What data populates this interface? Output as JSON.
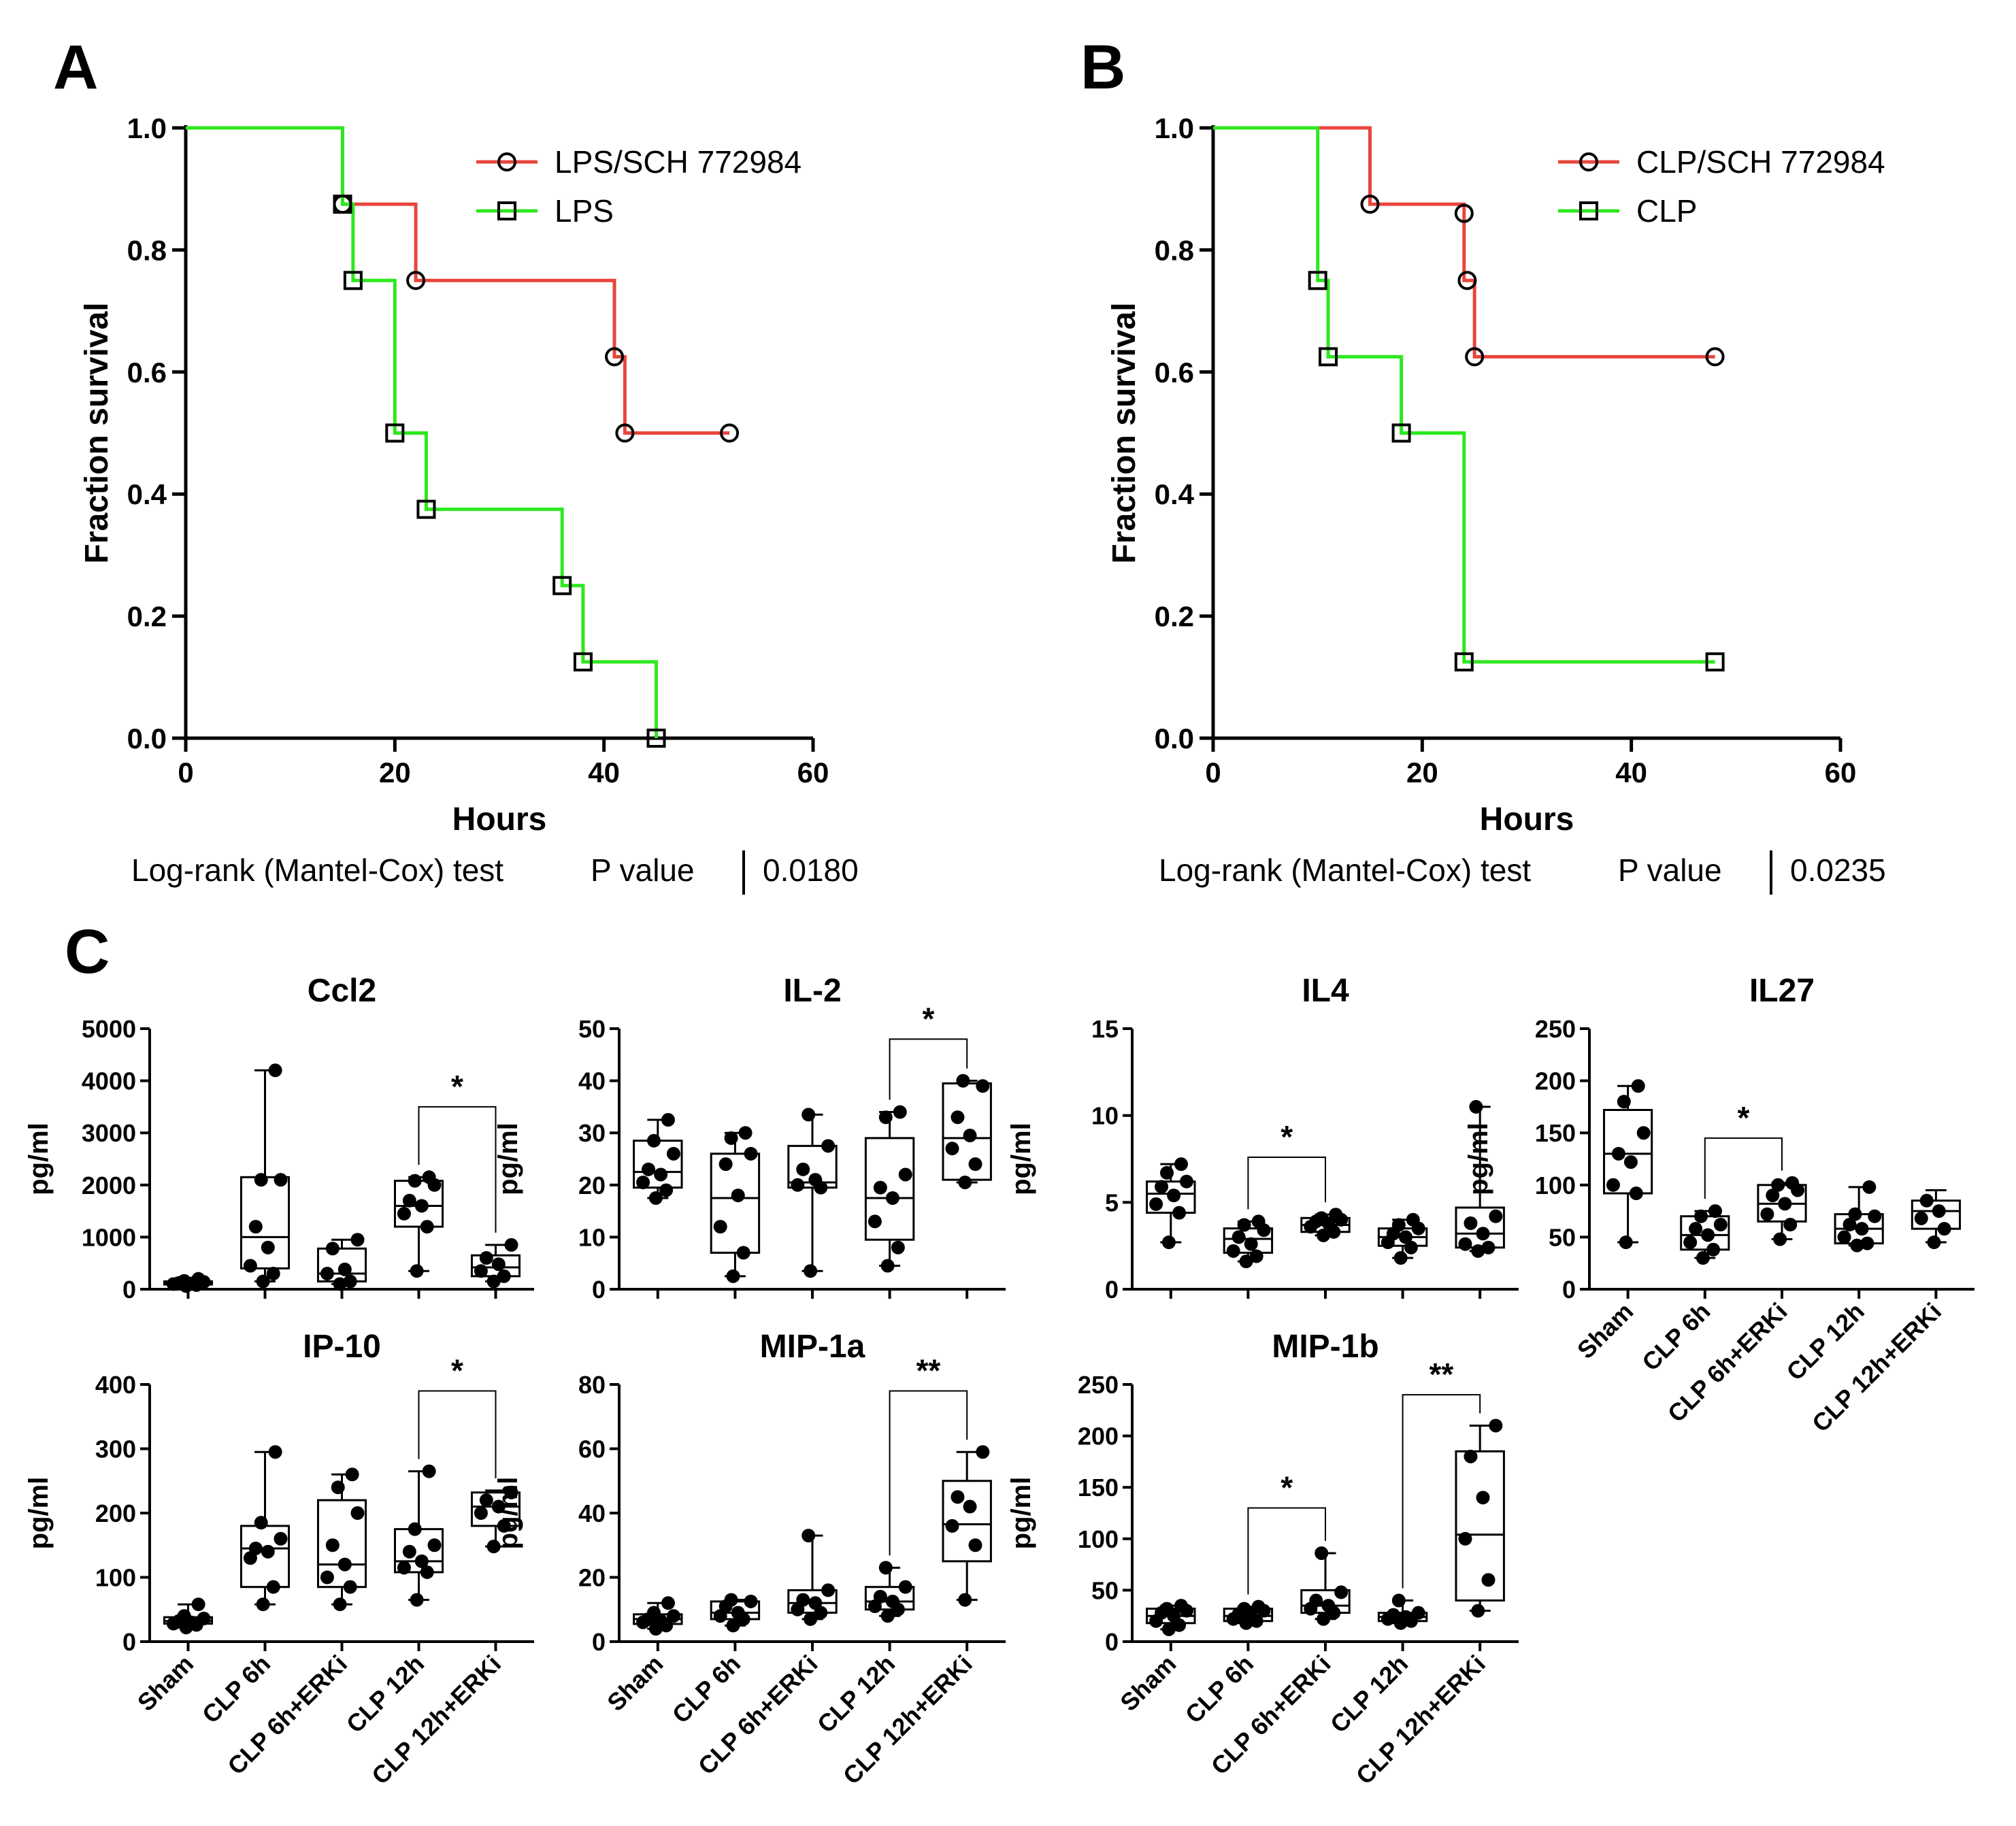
{
  "panels": {
    "A": {
      "label": "A"
    },
    "B": {
      "label": "B"
    },
    "C": {
      "label": "C"
    }
  },
  "chart_data": [
    {
      "panel": "A",
      "type": "line",
      "subtype": "kaplan-meier",
      "title": "",
      "xlabel": "Hours",
      "ylabel": "Fraction survival",
      "xlim": [
        0,
        60
      ],
      "ylim": [
        0,
        1.0
      ],
      "xticks": [
        "0",
        "20",
        "40",
        "60"
      ],
      "yticks": [
        "0.0",
        "0.2",
        "0.4",
        "0.6",
        "0.8",
        "1.0"
      ],
      "legend_position": "top-right",
      "series": [
        {
          "name": "LPS/SCH 772984",
          "color": "#e8453c",
          "marker": "circle",
          "steps": [
            [
              0,
              1.0
            ],
            [
              15,
              0.875
            ],
            [
              22,
              0.75
            ],
            [
              41,
              0.625
            ],
            [
              42,
              0.5
            ],
            [
              52,
              0.5
            ]
          ],
          "censored": [
            [
              15,
              0.875
            ],
            [
              22,
              0.75
            ],
            [
              41,
              0.625
            ],
            [
              42,
              0.5
            ],
            [
              52,
              0.5
            ]
          ]
        },
        {
          "name": "LPS",
          "color": "#2ee81e",
          "marker": "square",
          "steps": [
            [
              0,
              1.0
            ],
            [
              15,
              0.875
            ],
            [
              16,
              0.75
            ],
            [
              20,
              0.5
            ],
            [
              23,
              0.375
            ],
            [
              36,
              0.25
            ],
            [
              38,
              0.125
            ],
            [
              45,
              0.0
            ]
          ],
          "censored": [
            [
              15,
              0.875
            ],
            [
              16,
              0.75
            ],
            [
              20,
              0.5
            ],
            [
              23,
              0.375
            ],
            [
              36,
              0.25
            ],
            [
              38,
              0.125
            ],
            [
              45,
              0.0
            ]
          ]
        }
      ],
      "test": {
        "name": "Log-rank (Mantel-Cox) test",
        "p_label": "P value",
        "p_value": "0.0180"
      }
    },
    {
      "panel": "B",
      "type": "line",
      "subtype": "kaplan-meier",
      "title": "",
      "xlabel": "Hours",
      "ylabel": "Fraction survival",
      "xlim": [
        0,
        60
      ],
      "ylim": [
        0,
        1.0
      ],
      "xticks": [
        "0",
        "20",
        "40",
        "60"
      ],
      "yticks": [
        "0.0",
        "0.2",
        "0.4",
        "0.6",
        "0.8",
        "1.0"
      ],
      "legend_position": "top-right",
      "series": [
        {
          "name": "CLP/SCH 772984",
          "color": "#e8453c",
          "marker": "circle",
          "steps": [
            [
              0,
              1.0
            ],
            [
              15,
              0.875
            ],
            [
              24,
              0.75
            ],
            [
              25,
              0.625
            ],
            [
              48,
              0.625
            ]
          ],
          "censored": [
            [
              15,
              0.875
            ],
            [
              24,
              0.86
            ],
            [
              24.3,
              0.75
            ],
            [
              25,
              0.625
            ],
            [
              48,
              0.625
            ]
          ]
        },
        {
          "name": "CLP",
          "color": "#2ee81e",
          "marker": "square",
          "steps": [
            [
              0,
              1.0
            ],
            [
              10,
              0.75
            ],
            [
              11,
              0.625
            ],
            [
              18,
              0.5
            ],
            [
              24,
              0.125
            ],
            [
              48,
              0.125
            ]
          ],
          "censored": [
            [
              10,
              0.75
            ],
            [
              11,
              0.625
            ],
            [
              18,
              0.5
            ],
            [
              24,
              0.125
            ],
            [
              48,
              0.125
            ]
          ]
        }
      ],
      "test": {
        "name": "Log-rank (Mantel-Cox) test",
        "p_label": "P value",
        "p_value": "0.0235"
      }
    },
    {
      "panel": "C",
      "type": "box",
      "title": "Ccl2",
      "ylabel": "pg/ml",
      "ylim": [
        0,
        5000
      ],
      "yticks": [
        "0",
        "1000",
        "2000",
        "3000",
        "4000",
        "5000"
      ],
      "categories": [
        "Sham",
        "CLP 6h",
        "CLP 6h+ERKi",
        "CLP 12h",
        "CLP 12h+ERKi"
      ],
      "show_categories": false,
      "boxes": [
        {
          "min": 60,
          "q1": 90,
          "median": 120,
          "q3": 150,
          "max": 200,
          "points": [
            60,
            80,
            100,
            110,
            120,
            140,
            160,
            200
          ]
        },
        {
          "min": 150,
          "q1": 400,
          "median": 1000,
          "q3": 2150,
          "max": 4200,
          "points": [
            150,
            300,
            450,
            800,
            1200,
            2100,
            2100,
            4200
          ]
        },
        {
          "min": 100,
          "q1": 150,
          "median": 300,
          "q3": 780,
          "max": 950,
          "points": [
            100,
            150,
            300,
            380,
            780,
            950
          ]
        },
        {
          "min": 350,
          "q1": 1200,
          "median": 1600,
          "q3": 2080,
          "max": 2150,
          "points": [
            350,
            1200,
            1450,
            1600,
            1700,
            2000,
            2080,
            2150
          ]
        },
        {
          "min": 150,
          "q1": 250,
          "median": 420,
          "q3": 650,
          "max": 850,
          "points": [
            150,
            250,
            350,
            480,
            600,
            850
          ]
        }
      ],
      "brackets": [
        {
          "from": 3,
          "to": 4,
          "label": "*",
          "y": 3500
        }
      ]
    },
    {
      "panel": "C",
      "type": "box",
      "title": "IL-2",
      "ylabel": "pg/ml",
      "ylim": [
        0,
        50
      ],
      "yticks": [
        "0",
        "10",
        "20",
        "30",
        "40",
        "50"
      ],
      "categories": [
        "Sham",
        "CLP 6h",
        "CLP 6h+ERKi",
        "CLP 12h",
        "CLP 12h+ERKi"
      ],
      "show_categories": false,
      "boxes": [
        {
          "min": 17.5,
          "q1": 19.5,
          "median": 22.5,
          "q3": 28.5,
          "max": 32.5,
          "points": [
            17.5,
            19,
            20.5,
            22,
            23,
            26,
            28.5,
            32.5
          ]
        },
        {
          "min": 2.5,
          "q1": 7,
          "median": 17.5,
          "q3": 26,
          "max": 30,
          "points": [
            2.5,
            7,
            12,
            18,
            24,
            26,
            29,
            30
          ]
        },
        {
          "min": 3.5,
          "q1": 19.5,
          "median": 20.5,
          "q3": 27.5,
          "max": 33.5,
          "points": [
            3.5,
            19.5,
            20,
            21,
            23,
            27.5,
            33.5
          ]
        },
        {
          "min": 4.5,
          "q1": 9.5,
          "median": 17.5,
          "q3": 29,
          "max": 34,
          "points": [
            4.5,
            8,
            13,
            17.5,
            19.5,
            22,
            33,
            34
          ]
        },
        {
          "min": 20.5,
          "q1": 21,
          "median": 29,
          "q3": 39.5,
          "max": 40,
          "points": [
            20.5,
            24,
            27,
            29.5,
            33,
            39,
            40
          ]
        }
      ],
      "brackets": [
        {
          "from": 3,
          "to": 4,
          "label": "*",
          "y": 48
        }
      ]
    },
    {
      "panel": "C",
      "type": "box",
      "title": "IL4",
      "ylabel": "pg/ml",
      "ylim": [
        0,
        15
      ],
      "yticks": [
        "0",
        "5",
        "10",
        "15"
      ],
      "categories": [
        "Sham",
        "CLP 6h",
        "CLP 6h+ERKi",
        "CLP 12h",
        "CLP 12h+ERKi"
      ],
      "show_categories": false,
      "boxes": [
        {
          "min": 2.7,
          "q1": 4.4,
          "median": 5.5,
          "q3": 6.2,
          "max": 7.2,
          "points": [
            2.7,
            4.4,
            4.9,
            5.4,
            5.9,
            6.2,
            6.7,
            7.2
          ]
        },
        {
          "min": 1.6,
          "q1": 2.1,
          "median": 2.9,
          "q3": 3.5,
          "max": 3.9,
          "points": [
            1.6,
            1.9,
            2.2,
            2.6,
            3.0,
            3.4,
            3.7,
            3.9
          ]
        },
        {
          "min": 3.1,
          "q1": 3.3,
          "median": 3.7,
          "q3": 4.1,
          "max": 4.3,
          "points": [
            3.1,
            3.3,
            3.6,
            3.8,
            3.9,
            4.0,
            4.1,
            4.3
          ]
        },
        {
          "min": 1.8,
          "q1": 2.5,
          "median": 3.0,
          "q3": 3.5,
          "max": 4.0,
          "points": [
            1.8,
            2.4,
            2.7,
            3.0,
            3.2,
            3.5,
            3.7,
            4.0
          ]
        },
        {
          "min": 2.2,
          "q1": 2.4,
          "median": 3.2,
          "q3": 4.7,
          "max": 10.5,
          "points": [
            2.2,
            2.4,
            2.6,
            3.2,
            3.8,
            4.2,
            10.5
          ]
        }
      ],
      "brackets": [
        {
          "from": 1,
          "to": 2,
          "label": "*",
          "y": 7.6
        }
      ]
    },
    {
      "panel": "C",
      "type": "box",
      "title": "IL27",
      "ylabel": "pg/ml",
      "ylim": [
        0,
        250
      ],
      "yticks": [
        "0",
        "50",
        "100",
        "150",
        "200",
        "250"
      ],
      "categories": [
        "Sham",
        "CLP 6h",
        "CLP 6h+ERKi",
        "CLP 12h",
        "CLP 12h+ERKi"
      ],
      "show_categories": true,
      "boxes": [
        {
          "min": 45,
          "q1": 92,
          "median": 130,
          "q3": 172,
          "max": 195,
          "points": [
            45,
            92,
            100,
            122,
            130,
            150,
            180,
            195
          ]
        },
        {
          "min": 30,
          "q1": 38,
          "median": 52,
          "q3": 70,
          "max": 75,
          "points": [
            30,
            38,
            45,
            52,
            58,
            62,
            70,
            75
          ]
        },
        {
          "min": 48,
          "q1": 65,
          "median": 82,
          "q3": 100,
          "max": 102,
          "points": [
            48,
            62,
            72,
            82,
            90,
            95,
            100,
            102
          ]
        },
        {
          "min": 42,
          "q1": 44,
          "median": 58,
          "q3": 72,
          "max": 98,
          "points": [
            42,
            44,
            50,
            58,
            62,
            70,
            72,
            98
          ]
        },
        {
          "min": 45,
          "q1": 58,
          "median": 75,
          "q3": 85,
          "max": 95,
          "points": [
            45,
            58,
            68,
            75,
            85
          ]
        }
      ],
      "brackets": [
        {
          "from": 1,
          "to": 2,
          "label": "*",
          "y": 145
        }
      ]
    },
    {
      "panel": "C",
      "type": "box",
      "title": "IP-10",
      "ylabel": "pg/ml",
      "ylim": [
        0,
        400
      ],
      "yticks": [
        "0",
        "100",
        "200",
        "300",
        "400"
      ],
      "categories": [
        "Sham",
        "CLP 6h",
        "CLP 6h+ERKi",
        "CLP 12h",
        "CLP 12h+ERKi"
      ],
      "show_categories": true,
      "boxes": [
        {
          "min": 22,
          "q1": 28,
          "median": 32,
          "q3": 38,
          "max": 58,
          "points": [
            22,
            26,
            28,
            30,
            32,
            36,
            40,
            58
          ]
        },
        {
          "min": 58,
          "q1": 85,
          "median": 145,
          "q3": 180,
          "max": 295,
          "points": [
            58,
            85,
            130,
            140,
            145,
            160,
            185,
            295
          ]
        },
        {
          "min": 58,
          "q1": 85,
          "median": 120,
          "q3": 220,
          "max": 260,
          "points": [
            58,
            85,
            100,
            120,
            150,
            200,
            240,
            260
          ]
        },
        {
          "min": 65,
          "q1": 108,
          "median": 125,
          "q3": 175,
          "max": 265,
          "points": [
            65,
            108,
            115,
            125,
            140,
            150,
            175,
            265
          ]
        },
        {
          "min": 148,
          "q1": 180,
          "median": 210,
          "q3": 232,
          "max": 235,
          "points": [
            148,
            180,
            200,
            210,
            220,
            232
          ]
        }
      ],
      "brackets": [
        {
          "from": 3,
          "to": 4,
          "label": "*",
          "y": 390
        }
      ]
    },
    {
      "panel": "C",
      "type": "box",
      "title": "MIP-1a",
      "ylabel": "pg/ml",
      "ylim": [
        0,
        80
      ],
      "yticks": [
        "0",
        "20",
        "40",
        "60",
        "80"
      ],
      "categories": [
        "Sham",
        "CLP 6h",
        "CLP 6h+ERKi",
        "CLP 12h",
        "CLP 12h+ERKi"
      ],
      "show_categories": true,
      "boxes": [
        {
          "min": 4,
          "q1": 5.5,
          "median": 7,
          "q3": 8.5,
          "max": 12,
          "points": [
            4,
            5,
            6,
            6.5,
            7,
            8,
            9,
            12
          ]
        },
        {
          "min": 5,
          "q1": 7,
          "median": 9,
          "q3": 12.5,
          "max": 13,
          "points": [
            5,
            7,
            8,
            9,
            11,
            12.5,
            13
          ]
        },
        {
          "min": 7,
          "q1": 9,
          "median": 12,
          "q3": 16,
          "max": 33,
          "points": [
            7,
            9,
            10,
            12,
            13,
            16,
            33
          ]
        },
        {
          "min": 8,
          "q1": 10,
          "median": 12.5,
          "q3": 17,
          "max": 23,
          "points": [
            8,
            10,
            11,
            12.5,
            14,
            17,
            23
          ]
        },
        {
          "min": 13,
          "q1": 25,
          "median": 36.5,
          "q3": 50,
          "max": 59,
          "points": [
            13,
            30,
            36,
            42,
            45,
            59
          ]
        }
      ],
      "brackets": [
        {
          "from": 3,
          "to": 4,
          "label": "**",
          "y": 78
        }
      ]
    },
    {
      "panel": "C",
      "type": "box",
      "title": "MIP-1b",
      "ylabel": "pg/ml",
      "ylim": [
        0,
        250
      ],
      "yticks": [
        "0",
        "50",
        "100",
        "150",
        "200",
        "250"
      ],
      "categories": [
        "Sham",
        "CLP 6h",
        "CLP 6h+ERKi",
        "CLP 12h",
        "CLP 12h+ERKi"
      ],
      "show_categories": true,
      "boxes": [
        {
          "min": 12,
          "q1": 18,
          "median": 25,
          "q3": 32,
          "max": 35,
          "points": [
            12,
            16,
            20,
            25,
            28,
            30,
            32,
            35
          ]
        },
        {
          "min": 18,
          "q1": 20,
          "median": 25,
          "q3": 32,
          "max": 34,
          "points": [
            18,
            20,
            22,
            25,
            27,
            30,
            32,
            34
          ]
        },
        {
          "min": 22,
          "q1": 28,
          "median": 35,
          "q3": 50,
          "max": 86,
          "points": [
            22,
            28,
            32,
            35,
            40,
            48,
            86
          ]
        },
        {
          "min": 18,
          "q1": 20,
          "median": 24,
          "q3": 28,
          "max": 40,
          "points": [
            18,
            20,
            22,
            24,
            26,
            28,
            40
          ]
        },
        {
          "min": 30,
          "q1": 40,
          "median": 104,
          "q3": 185,
          "max": 210,
          "points": [
            30,
            60,
            100,
            140,
            180,
            210
          ]
        }
      ],
      "brackets": [
        {
          "from": 1,
          "to": 2,
          "label": "*",
          "y": 130
        },
        {
          "from": 3,
          "to": 4,
          "label": "**",
          "y": 240
        }
      ]
    }
  ]
}
